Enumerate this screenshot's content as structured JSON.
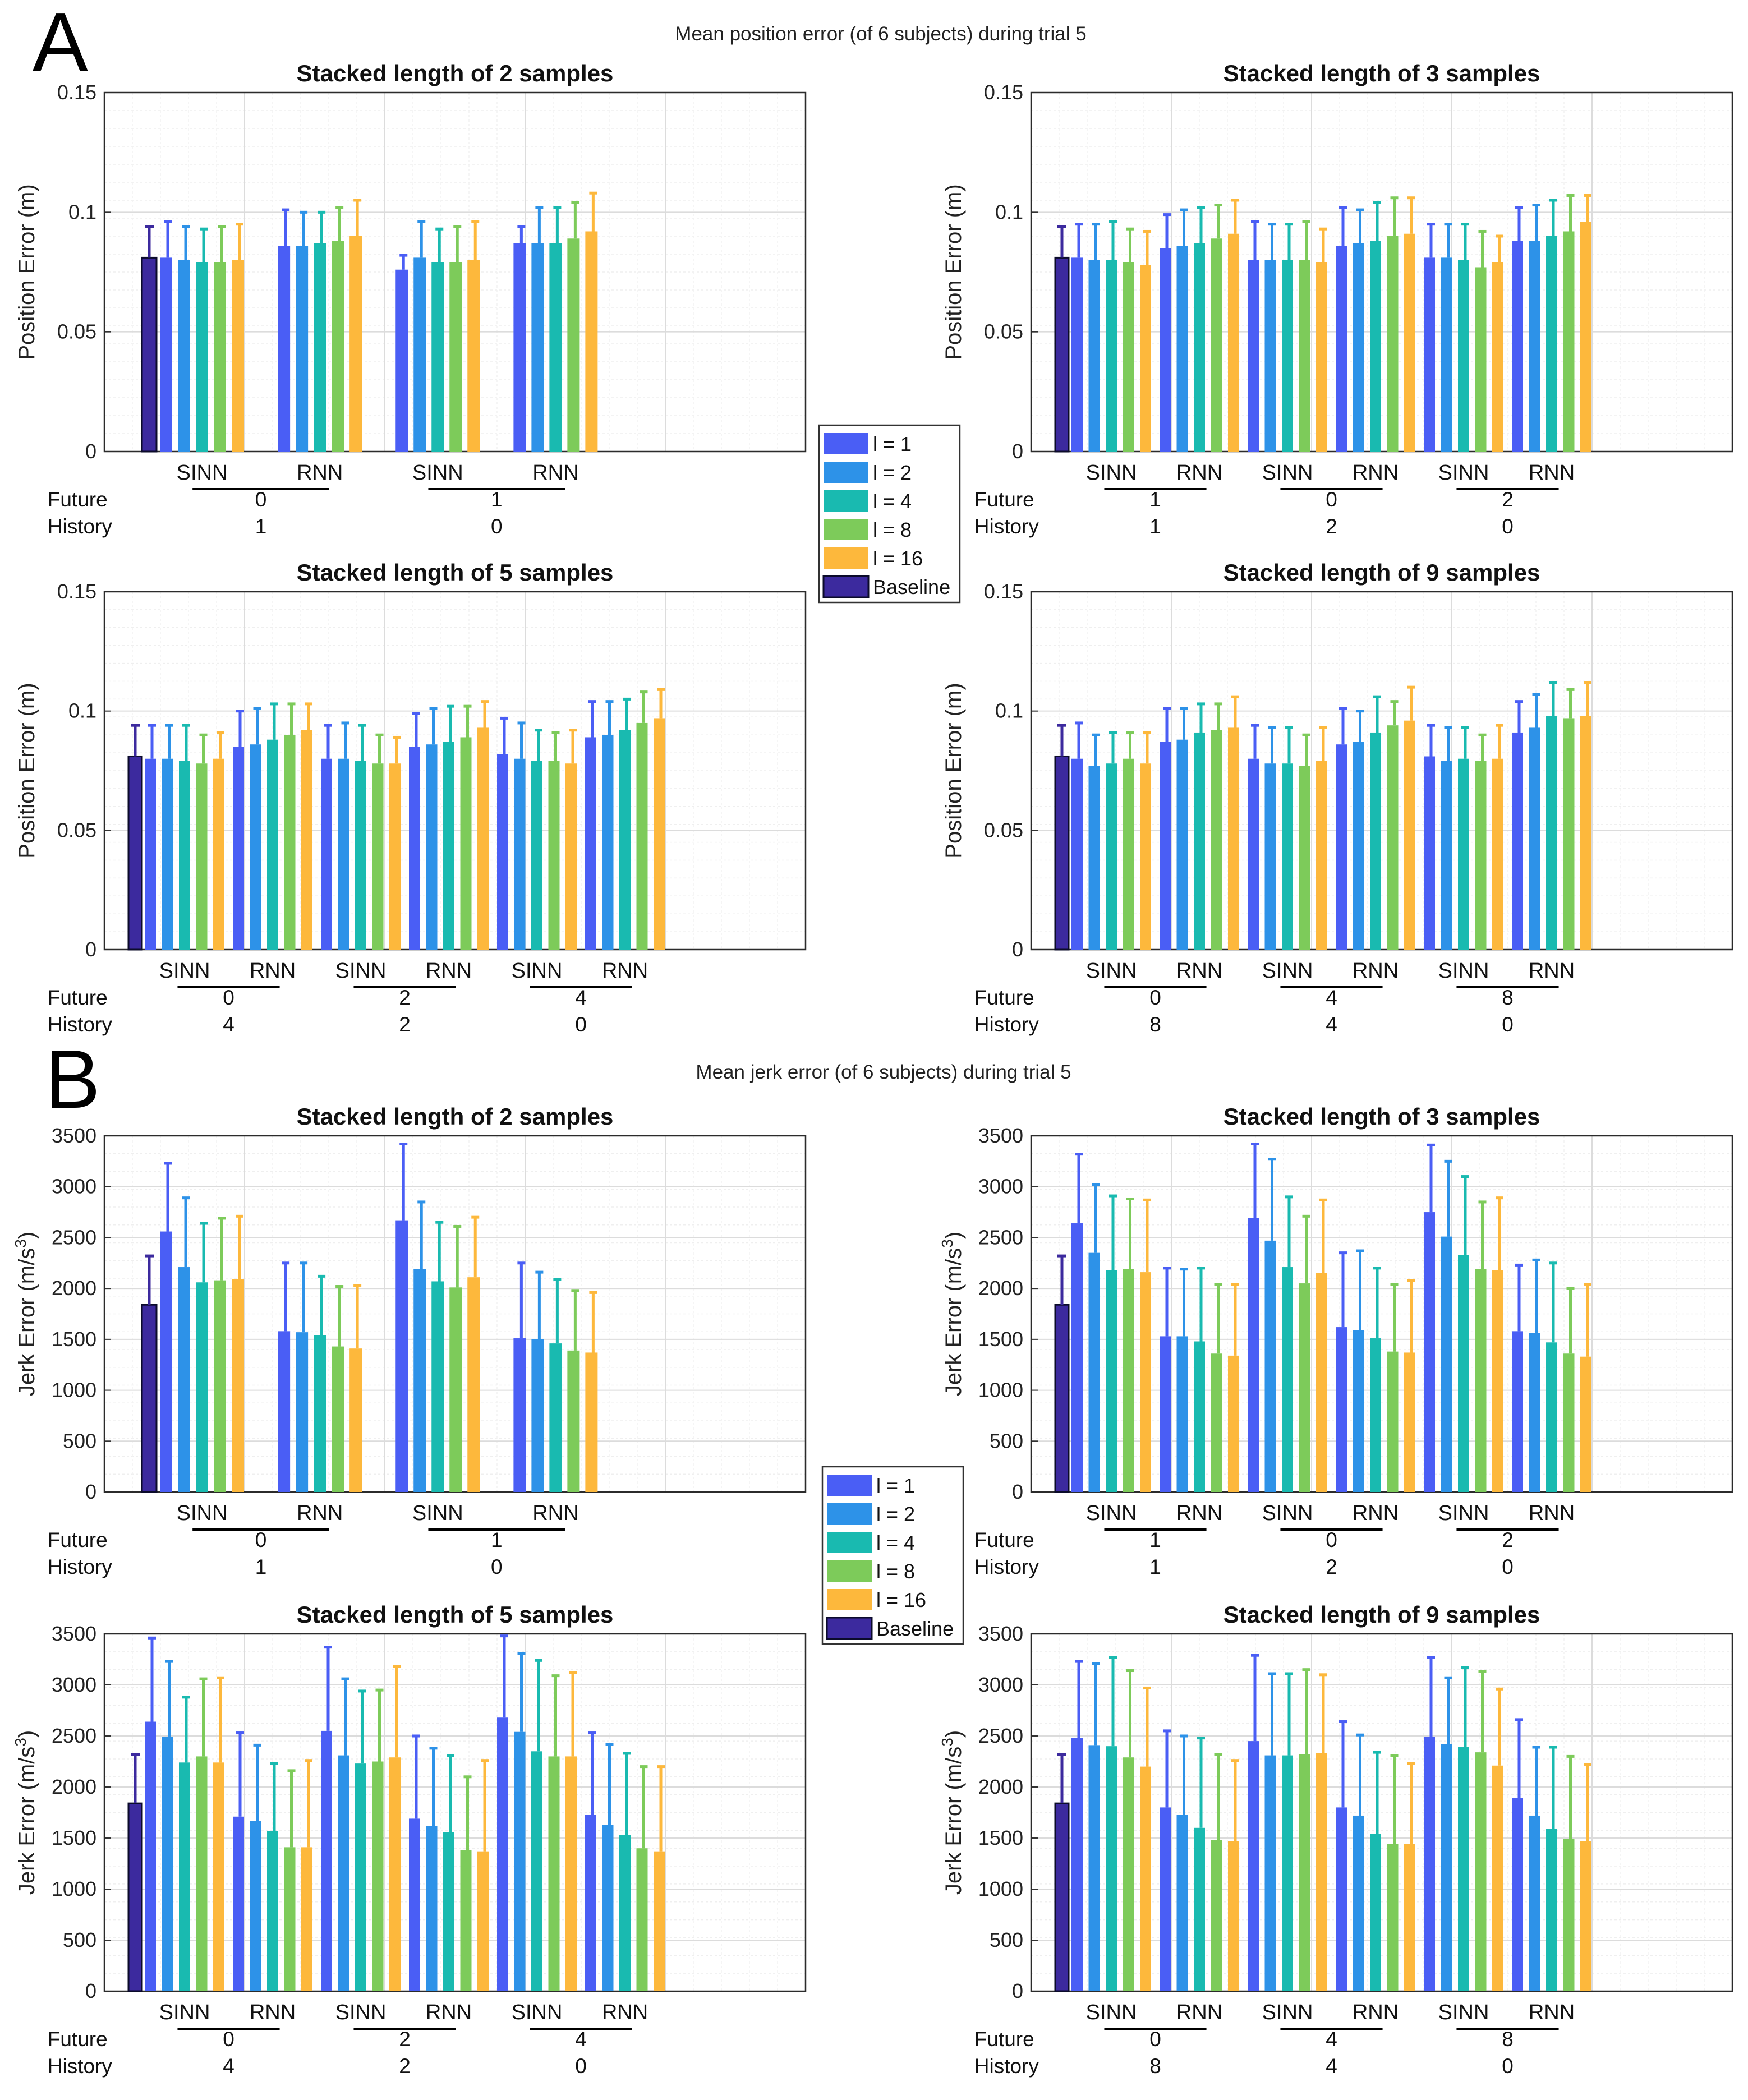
{
  "figure": {
    "section_a": {
      "letter": "A",
      "suptitle": "Mean position error (of 6 subjects) during trial 5"
    },
    "section_b": {
      "letter": "B",
      "suptitle": "Mean jerk error (of 6 subjects) during trial 5"
    }
  },
  "legend": {
    "entries": [
      {
        "label": "l = 1",
        "color": "#4A5EF5"
      },
      {
        "label": "l = 2",
        "color": "#2D92E8"
      },
      {
        "label": "l = 4",
        "color": "#19BAB0"
      },
      {
        "label": "l = 8",
        "color": "#7DCB5A"
      },
      {
        "label": "l = 16",
        "color": "#FDB83C"
      },
      {
        "label": "Baseline",
        "color": "#3C2A9E"
      }
    ]
  },
  "chart_data": [
    {
      "type": "bar",
      "section": "A",
      "title": "Stacked length of 2 samples",
      "ylabel": "Position Error (m)",
      "ylim": [
        0,
        0.15
      ],
      "yticks": [
        0,
        0.05,
        0.1,
        0.15
      ],
      "baseline": {
        "value": 0.081,
        "err": 0.094
      },
      "models": [
        "SINN",
        "RNN",
        "SINN",
        "RNN"
      ],
      "row_labels": [
        "Future",
        "History"
      ],
      "configs": [
        {
          "future": "0",
          "history": "1"
        },
        {
          "future": "1",
          "history": "0"
        }
      ],
      "series_names": [
        "l = 1",
        "l = 2",
        "l = 4",
        "l = 8",
        "l = 16"
      ],
      "values": [
        [
          0.081,
          0.08,
          0.079,
          0.079,
          0.08
        ],
        [
          0.086,
          0.086,
          0.087,
          0.088,
          0.09
        ],
        [
          0.076,
          0.081,
          0.079,
          0.079,
          0.08
        ],
        [
          0.087,
          0.087,
          0.087,
          0.089,
          0.092
        ]
      ],
      "errors": [
        [
          0.096,
          0.094,
          0.093,
          0.094,
          0.095
        ],
        [
          0.101,
          0.1,
          0.1,
          0.102,
          0.105
        ],
        [
          0.082,
          0.096,
          0.093,
          0.094,
          0.096
        ],
        [
          0.094,
          0.102,
          0.102,
          0.104,
          0.108
        ]
      ]
    },
    {
      "type": "bar",
      "section": "A",
      "title": "Stacked length of 3 samples",
      "ylabel": "Position Error (m)",
      "ylim": [
        0,
        0.15
      ],
      "yticks": [
        0,
        0.05,
        0.1,
        0.15
      ],
      "baseline": {
        "value": 0.081,
        "err": 0.094
      },
      "models": [
        "SINN",
        "RNN",
        "SINN",
        "RNN",
        "SINN",
        "RNN"
      ],
      "row_labels": [
        "Future",
        "History"
      ],
      "configs": [
        {
          "future": "1",
          "history": "1"
        },
        {
          "future": "0",
          "history": "2"
        },
        {
          "future": "2",
          "history": "0"
        }
      ],
      "series_names": [
        "l = 1",
        "l = 2",
        "l = 4",
        "l = 8",
        "l = 16"
      ],
      "values": [
        [
          0.081,
          0.08,
          0.08,
          0.079,
          0.078
        ],
        [
          0.085,
          0.086,
          0.087,
          0.089,
          0.091
        ],
        [
          0.08,
          0.08,
          0.08,
          0.08,
          0.079
        ],
        [
          0.086,
          0.087,
          0.088,
          0.09,
          0.091
        ],
        [
          0.081,
          0.081,
          0.08,
          0.077,
          0.079
        ],
        [
          0.088,
          0.088,
          0.09,
          0.092,
          0.096
        ]
      ],
      "errors": [
        [
          0.095,
          0.095,
          0.096,
          0.093,
          0.092
        ],
        [
          0.099,
          0.101,
          0.102,
          0.103,
          0.105
        ],
        [
          0.096,
          0.095,
          0.095,
          0.096,
          0.093
        ],
        [
          0.102,
          0.101,
          0.104,
          0.106,
          0.106
        ],
        [
          0.095,
          0.095,
          0.095,
          0.092,
          0.09
        ],
        [
          0.102,
          0.103,
          0.105,
          0.107,
          0.107
        ]
      ]
    },
    {
      "type": "bar",
      "section": "A",
      "title": "Stacked length of 5 samples",
      "ylabel": "Position Error (m)",
      "ylim": [
        0,
        0.15
      ],
      "yticks": [
        0,
        0.05,
        0.1,
        0.15
      ],
      "baseline": {
        "value": 0.081,
        "err": 0.094
      },
      "models": [
        "SINN",
        "RNN",
        "SINN",
        "RNN",
        "SINN",
        "RNN"
      ],
      "row_labels": [
        "Future",
        "History"
      ],
      "configs": [
        {
          "future": "0",
          "history": "4"
        },
        {
          "future": "2",
          "history": "2"
        },
        {
          "future": "4",
          "history": "0"
        }
      ],
      "series_names": [
        "l = 1",
        "l = 2",
        "l = 4",
        "l = 8",
        "l = 16"
      ],
      "values": [
        [
          0.08,
          0.08,
          0.079,
          0.078,
          0.08
        ],
        [
          0.085,
          0.086,
          0.088,
          0.09,
          0.092
        ],
        [
          0.08,
          0.08,
          0.079,
          0.078,
          0.078
        ],
        [
          0.085,
          0.086,
          0.087,
          0.089,
          0.093
        ],
        [
          0.082,
          0.08,
          0.079,
          0.079,
          0.078
        ],
        [
          0.089,
          0.09,
          0.092,
          0.095,
          0.097
        ]
      ],
      "errors": [
        [
          0.094,
          0.094,
          0.094,
          0.09,
          0.091
        ],
        [
          0.1,
          0.101,
          0.103,
          0.103,
          0.103
        ],
        [
          0.094,
          0.095,
          0.094,
          0.09,
          0.089
        ],
        [
          0.099,
          0.101,
          0.102,
          0.102,
          0.104
        ],
        [
          0.097,
          0.095,
          0.092,
          0.091,
          0.092
        ],
        [
          0.104,
          0.104,
          0.105,
          0.108,
          0.109
        ]
      ]
    },
    {
      "type": "bar",
      "section": "A",
      "title": "Stacked length of 9 samples",
      "ylabel": "Position Error (m)",
      "ylim": [
        0,
        0.15
      ],
      "yticks": [
        0,
        0.05,
        0.1,
        0.15
      ],
      "baseline": {
        "value": 0.081,
        "err": 0.094
      },
      "models": [
        "SINN",
        "RNN",
        "SINN",
        "RNN",
        "SINN",
        "RNN"
      ],
      "row_labels": [
        "Future",
        "History"
      ],
      "configs": [
        {
          "future": "0",
          "history": "8"
        },
        {
          "future": "4",
          "history": "4"
        },
        {
          "future": "8",
          "history": "0"
        }
      ],
      "series_names": [
        "l = 1",
        "l = 2",
        "l = 4",
        "l = 8",
        "l = 16"
      ],
      "values": [
        [
          0.08,
          0.077,
          0.078,
          0.08,
          0.078
        ],
        [
          0.087,
          0.088,
          0.091,
          0.092,
          0.093
        ],
        [
          0.08,
          0.078,
          0.078,
          0.077,
          0.079
        ],
        [
          0.086,
          0.087,
          0.091,
          0.094,
          0.096
        ],
        [
          0.081,
          0.079,
          0.08,
          0.079,
          0.08
        ],
        [
          0.091,
          0.093,
          0.098,
          0.097,
          0.098
        ]
      ],
      "errors": [
        [
          0.095,
          0.09,
          0.091,
          0.091,
          0.091
        ],
        [
          0.101,
          0.101,
          0.103,
          0.103,
          0.106
        ],
        [
          0.094,
          0.093,
          0.093,
          0.09,
          0.093
        ],
        [
          0.101,
          0.1,
          0.106,
          0.104,
          0.11
        ],
        [
          0.094,
          0.093,
          0.093,
          0.09,
          0.094
        ],
        [
          0.104,
          0.107,
          0.112,
          0.109,
          0.112
        ]
      ]
    },
    {
      "type": "bar",
      "section": "B",
      "title": "Stacked length of 2 samples",
      "ylabel": "Jerk Error (m/s³)",
      "ylim": [
        0,
        3500
      ],
      "yticks": [
        0,
        500,
        1000,
        1500,
        2000,
        2500,
        3000,
        3500
      ],
      "baseline": {
        "value": 1840,
        "err": 2320
      },
      "models": [
        "SINN",
        "RNN",
        "SINN",
        "RNN"
      ],
      "row_labels": [
        "Future",
        "History"
      ],
      "configs": [
        {
          "future": "0",
          "history": "1"
        },
        {
          "future": "1",
          "history": "0"
        }
      ],
      "series_names": [
        "l = 1",
        "l = 2",
        "l = 4",
        "l = 8",
        "l = 16"
      ],
      "values": [
        [
          2560,
          2210,
          2060,
          2080,
          2090
        ],
        [
          1580,
          1570,
          1540,
          1430,
          1410
        ],
        [
          2670,
          2190,
          2070,
          2010,
          2110
        ],
        [
          1510,
          1500,
          1460,
          1390,
          1370
        ]
      ],
      "errors": [
        [
          3230,
          2890,
          2640,
          2690,
          2710
        ],
        [
          2250,
          2250,
          2120,
          2020,
          2030
        ],
        [
          3420,
          2850,
          2650,
          2610,
          2700
        ],
        [
          2250,
          2160,
          2090,
          1980,
          1960
        ]
      ]
    },
    {
      "type": "bar",
      "section": "B",
      "title": "Stacked length of 3 samples",
      "ylabel": "Jerk Error (m/s³)",
      "ylim": [
        0,
        3500
      ],
      "yticks": [
        0,
        500,
        1000,
        1500,
        2000,
        2500,
        3000,
        3500
      ],
      "baseline": {
        "value": 1840,
        "err": 2320
      },
      "models": [
        "SINN",
        "RNN",
        "SINN",
        "RNN",
        "SINN",
        "RNN"
      ],
      "row_labels": [
        "Future",
        "History"
      ],
      "configs": [
        {
          "future": "1",
          "history": "1"
        },
        {
          "future": "0",
          "history": "2"
        },
        {
          "future": "2",
          "history": "0"
        }
      ],
      "series_names": [
        "l = 1",
        "l = 2",
        "l = 4",
        "l = 8",
        "l = 16"
      ],
      "values": [
        [
          2640,
          2350,
          2180,
          2190,
          2160
        ],
        [
          1530,
          1530,
          1480,
          1360,
          1340
        ],
        [
          2690,
          2470,
          2210,
          2050,
          2150
        ],
        [
          1620,
          1590,
          1510,
          1380,
          1370
        ],
        [
          2750,
          2510,
          2330,
          2190,
          2180
        ],
        [
          1580,
          1560,
          1470,
          1360,
          1330
        ]
      ],
      "errors": [
        [
          3320,
          3020,
          2910,
          2880,
          2870
        ],
        [
          2200,
          2190,
          2200,
          2040,
          2040
        ],
        [
          3420,
          3270,
          2900,
          2710,
          2870
        ],
        [
          2350,
          2370,
          2200,
          2040,
          2080
        ],
        [
          3410,
          3250,
          3100,
          2850,
          2890
        ],
        [
          2230,
          2280,
          2250,
          2000,
          2040
        ]
      ]
    },
    {
      "type": "bar",
      "section": "B",
      "title": "Stacked length of 5 samples",
      "ylabel": "Jerk Error (m/s³)",
      "ylim": [
        0,
        3500
      ],
      "yticks": [
        0,
        500,
        1000,
        1500,
        2000,
        2500,
        3000,
        3500
      ],
      "baseline": {
        "value": 1840,
        "err": 2320
      },
      "models": [
        "SINN",
        "RNN",
        "SINN",
        "RNN",
        "SINN",
        "RNN"
      ],
      "row_labels": [
        "Future",
        "History"
      ],
      "configs": [
        {
          "future": "0",
          "history": "4"
        },
        {
          "future": "2",
          "history": "2"
        },
        {
          "future": "4",
          "history": "0"
        }
      ],
      "series_names": [
        "l = 1",
        "l = 2",
        "l = 4",
        "l = 8",
        "l = 16"
      ],
      "values": [
        [
          2640,
          2490,
          2240,
          2300,
          2240
        ],
        [
          1710,
          1670,
          1570,
          1410,
          1410
        ],
        [
          2550,
          2310,
          2230,
          2250,
          2290
        ],
        [
          1690,
          1620,
          1560,
          1380,
          1370
        ],
        [
          2680,
          2540,
          2350,
          2300,
          2300
        ],
        [
          1730,
          1630,
          1530,
          1400,
          1370
        ]
      ],
      "errors": [
        [
          3460,
          3230,
          2880,
          3060,
          3070
        ],
        [
          2530,
          2410,
          2230,
          2160,
          2260
        ],
        [
          3370,
          3060,
          2940,
          2950,
          3180
        ],
        [
          2500,
          2380,
          2310,
          2100,
          2260
        ],
        [
          3480,
          3310,
          3240,
          3090,
          3120
        ],
        [
          2530,
          2420,
          2330,
          2200,
          2200
        ]
      ]
    },
    {
      "type": "bar",
      "section": "B",
      "title": "Stacked length of 9 samples",
      "ylabel": "Jerk Error (m/s³)",
      "ylim": [
        0,
        3500
      ],
      "yticks": [
        0,
        500,
        1000,
        1500,
        2000,
        2500,
        3000,
        3500
      ],
      "baseline": {
        "value": 1840,
        "err": 2320
      },
      "models": [
        "SINN",
        "RNN",
        "SINN",
        "RNN",
        "SINN",
        "RNN"
      ],
      "row_labels": [
        "Future",
        "History"
      ],
      "configs": [
        {
          "future": "0",
          "history": "8"
        },
        {
          "future": "4",
          "history": "4"
        },
        {
          "future": "8",
          "history": "0"
        }
      ],
      "series_names": [
        "l = 1",
        "l = 2",
        "l = 4",
        "l = 8",
        "l = 16"
      ],
      "values": [
        [
          2480,
          2410,
          2400,
          2290,
          2200
        ],
        [
          1800,
          1730,
          1600,
          1480,
          1470
        ],
        [
          2450,
          2310,
          2310,
          2320,
          2330
        ],
        [
          1800,
          1720,
          1540,
          1440,
          1440
        ],
        [
          2490,
          2420,
          2390,
          2340,
          2210
        ],
        [
          1890,
          1720,
          1590,
          1490,
          1470
        ]
      ],
      "errors": [
        [
          3230,
          3210,
          3270,
          3140,
          2970
        ],
        [
          2550,
          2500,
          2480,
          2320,
          2260
        ],
        [
          3290,
          3110,
          3110,
          3150,
          3100
        ],
        [
          2640,
          2510,
          2340,
          2310,
          2230
        ],
        [
          3270,
          3070,
          3170,
          3130,
          2960
        ],
        [
          2660,
          2390,
          2390,
          2300,
          2220
        ]
      ]
    }
  ]
}
